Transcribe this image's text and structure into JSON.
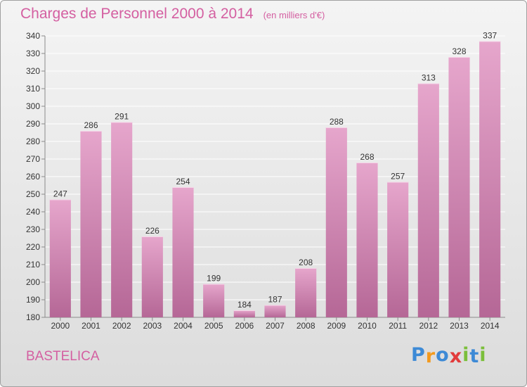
{
  "title": "Charges de Personnel 2000 à 2014",
  "subtitle": "(en milliers d'€)",
  "city": "BASTELICA",
  "brand": {
    "letters": [
      "P",
      "r",
      "o",
      "x",
      "i",
      "t",
      "i"
    ],
    "colors": [
      "#3d8ad6",
      "#f29a1f",
      "#3d8ad6",
      "#e23b3b",
      "#7bbf3a",
      "#3d8ad6",
      "#7bbf3a"
    ]
  },
  "colors": {
    "bar_top": "#e6a6cc",
    "bar_bottom": "#b56796",
    "label": "#d45fa1",
    "gridline": "#ffffff"
  },
  "chart_data": {
    "type": "bar",
    "title": "Charges de Personnel 2000 à 2014",
    "subtitle": "(en milliers d'€)",
    "categories": [
      "2000",
      "2001",
      "2002",
      "2003",
      "2004",
      "2005",
      "2006",
      "2007",
      "2008",
      "2009",
      "2010",
      "2011",
      "2012",
      "2013",
      "2014"
    ],
    "values": [
      247,
      286,
      291,
      226,
      254,
      199,
      184,
      187,
      208,
      288,
      268,
      257,
      313,
      328,
      337
    ],
    "ylim": [
      180,
      340
    ],
    "yticks": [
      180,
      190,
      200,
      210,
      220,
      230,
      240,
      250,
      260,
      270,
      280,
      290,
      300,
      310,
      320,
      330,
      340
    ],
    "grid": true,
    "legend": "none"
  }
}
